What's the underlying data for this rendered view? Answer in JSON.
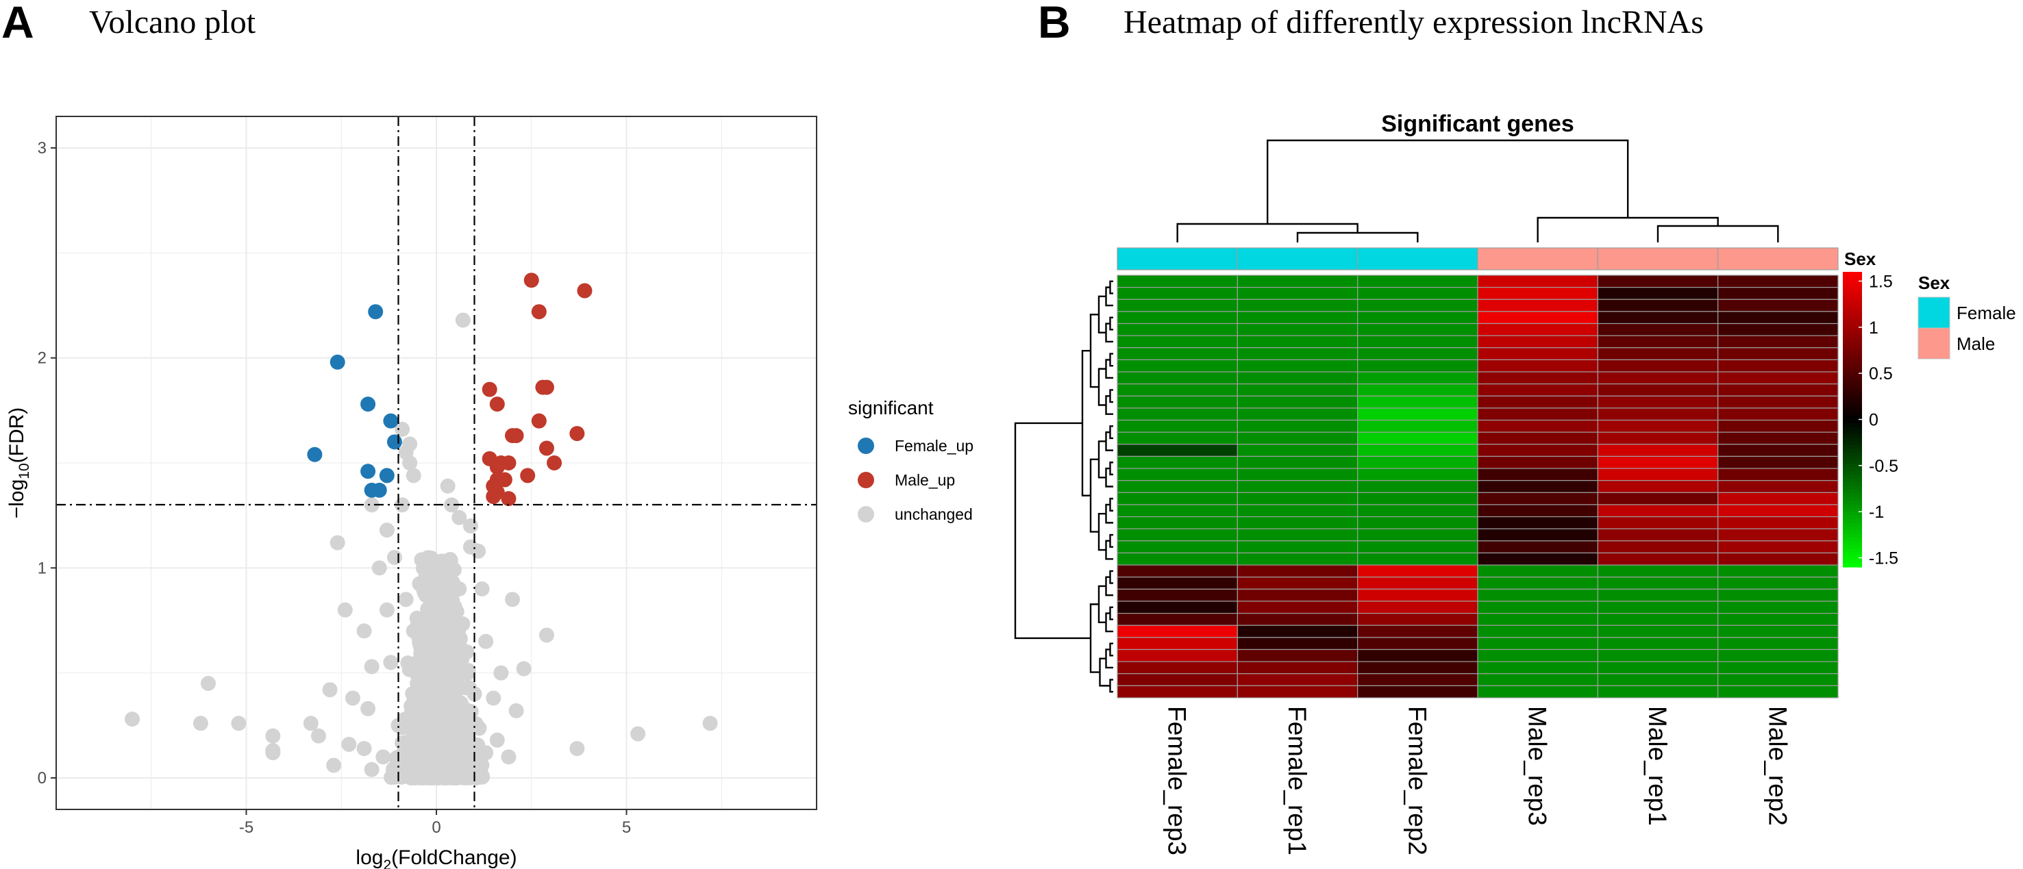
{
  "panels": {
    "a": {
      "letter": "A",
      "title": "Volcano plot"
    },
    "b": {
      "letter": "B",
      "title": "Heatmap of  differently expression lncRNAs"
    }
  },
  "colors": {
    "female_up": "#1f78b4",
    "male_up": "#c0392b",
    "unchanged": "#d3d3d3",
    "female_annot": "#00d7e0",
    "male_annot": "#fc988c"
  },
  "chart_data": [
    {
      "type": "scatter",
      "title": "Volcano plot",
      "xlabel": "log2(FoldChange)",
      "ylabel": "-log10(FDR)",
      "xlim": [
        -10,
        10
      ],
      "ylim": [
        -0.15,
        3.15
      ],
      "xticks": [
        -5,
        0,
        5
      ],
      "yticks": [
        0,
        1,
        2,
        3
      ],
      "thresholds": {
        "x": [
          -1,
          1
        ],
        "y": 1.301
      },
      "legend": {
        "title": "significant",
        "entries": [
          "Female_up",
          "Male_up",
          "unchanged"
        ]
      },
      "series": [
        {
          "name": "Female_up",
          "points": [
            [
              -1.6,
              2.22
            ],
            [
              -2.6,
              1.98
            ],
            [
              -1.8,
              1.78
            ],
            [
              -1.2,
              1.7
            ],
            [
              -3.2,
              1.54
            ],
            [
              -1.1,
              1.6
            ],
            [
              -1.8,
              1.46
            ],
            [
              -1.3,
              1.44
            ],
            [
              -1.7,
              1.37
            ],
            [
              -1.5,
              1.37
            ]
          ]
        },
        {
          "name": "Male_up",
          "points": [
            [
              2.5,
              2.37
            ],
            [
              3.9,
              2.32
            ],
            [
              2.7,
              2.22
            ],
            [
              1.4,
              1.85
            ],
            [
              2.9,
              1.86
            ],
            [
              2.8,
              1.86
            ],
            [
              1.6,
              1.78
            ],
            [
              2.7,
              1.7
            ],
            [
              3.7,
              1.64
            ],
            [
              2.1,
              1.63
            ],
            [
              2.0,
              1.63
            ],
            [
              2.9,
              1.57
            ],
            [
              1.4,
              1.52
            ],
            [
              1.7,
              1.5
            ],
            [
              1.9,
              1.5
            ],
            [
              3.1,
              1.5
            ],
            [
              1.6,
              1.48
            ],
            [
              2.4,
              1.44
            ],
            [
              1.6,
              1.42
            ],
            [
              1.8,
              1.42
            ],
            [
              1.5,
              1.39
            ],
            [
              1.6,
              1.36
            ],
            [
              1.9,
              1.33
            ],
            [
              1.5,
              1.34
            ]
          ]
        },
        {
          "name": "unchanged",
          "points": [
            [
              0.7,
              2.18
            ],
            [
              -0.9,
              1.66
            ],
            [
              -0.7,
              1.59
            ],
            [
              -0.8,
              1.55
            ],
            [
              -0.7,
              1.5
            ],
            [
              -0.6,
              1.44
            ],
            [
              0.3,
              1.39
            ],
            [
              0.4,
              1.3
            ],
            [
              -1.7,
              1.3
            ],
            [
              -0.9,
              1.3
            ],
            [
              0.6,
              1.24
            ],
            [
              -2.6,
              1.12
            ],
            [
              -1.3,
              1.18
            ],
            [
              0.9,
              1.2
            ],
            [
              1.1,
              1.08
            ],
            [
              -1.5,
              1.0
            ],
            [
              -0.2,
              0.95
            ],
            [
              0.3,
              0.92
            ],
            [
              2.0,
              0.85
            ],
            [
              -2.4,
              0.8
            ],
            [
              2.9,
              0.68
            ],
            [
              -1.9,
              0.7
            ],
            [
              1.3,
              0.65
            ],
            [
              2.3,
              0.52
            ],
            [
              -1.7,
              0.53
            ],
            [
              1.7,
              0.5
            ],
            [
              -6.0,
              0.45
            ],
            [
              -2.8,
              0.42
            ],
            [
              -2.2,
              0.38
            ],
            [
              1.5,
              0.38
            ],
            [
              2.1,
              0.32
            ],
            [
              -1.8,
              0.33
            ],
            [
              -8.0,
              0.28
            ],
            [
              -6.2,
              0.26
            ],
            [
              -5.2,
              0.26
            ],
            [
              -3.3,
              0.26
            ],
            [
              -3.1,
              0.2
            ],
            [
              -4.3,
              0.2
            ],
            [
              -4.3,
              0.13
            ],
            [
              -4.3,
              0.12
            ],
            [
              -2.3,
              0.16
            ],
            [
              -2.7,
              0.06
            ],
            [
              -1.9,
              0.14
            ],
            [
              1.6,
              0.18
            ],
            [
              3.7,
              0.14
            ],
            [
              5.3,
              0.21
            ],
            [
              7.2,
              0.26
            ],
            [
              1.9,
              0.1
            ],
            [
              -1.7,
              0.04
            ],
            [
              -1.4,
              0.1
            ],
            [
              0.9,
              0.05
            ],
            [
              1.3,
              0.12
            ],
            [
              -0.4,
              0.3
            ],
            [
              0.5,
              0.5
            ],
            [
              -0.6,
              0.7
            ],
            [
              0.2,
              0.8
            ],
            [
              -0.3,
              1.0
            ],
            [
              0.8,
              0.6
            ],
            [
              0.2,
              0.1
            ],
            [
              0.0,
              0.02
            ],
            [
              -0.2,
              0.04
            ],
            [
              0.3,
              0.08
            ],
            [
              0.6,
              0.9
            ],
            [
              -0.8,
              0.85
            ],
            [
              1.0,
              0.4
            ],
            [
              -1.2,
              0.55
            ],
            [
              -1.0,
              0.25
            ],
            [
              0.7,
              0.15
            ],
            [
              -0.5,
              0.45
            ],
            [
              0.4,
              0.65
            ],
            [
              -0.1,
              0.75
            ],
            [
              1.2,
              0.9
            ],
            [
              -1.3,
              0.8
            ],
            [
              0.9,
              1.1
            ],
            [
              -1.1,
              1.05
            ],
            [
              0.1,
              0.4
            ],
            [
              -0.6,
              0.2
            ]
          ]
        }
      ]
    },
    {
      "type": "heatmap",
      "title": "Significant genes",
      "columns": [
        "Female_rep3",
        "Female_rep1",
        "Female_rep2",
        "Male_rep3",
        "Male_rep1",
        "Male_rep2"
      ],
      "column_groups": [
        "Female",
        "Female",
        "Female",
        "Male",
        "Male",
        "Male"
      ],
      "annotation": {
        "title": "Sex",
        "entries": [
          "Female",
          "Male"
        ]
      },
      "colorbar": {
        "min": -1.6,
        "max": 1.6,
        "ticks": [
          "1.5",
          "1",
          "0.5",
          "0",
          "-0.5",
          "-1",
          "-1.5"
        ],
        "tick_values": [
          1.5,
          1,
          0.5,
          0,
          -0.5,
          -1,
          -1.5
        ]
      },
      "values": [
        [
          -0.9,
          -0.9,
          -0.9,
          1.3,
          0.5,
          0.5
        ],
        [
          -0.9,
          -0.9,
          -0.9,
          1.4,
          0.2,
          0.4
        ],
        [
          -0.9,
          -0.9,
          -0.9,
          1.4,
          0.3,
          0.5
        ],
        [
          -0.9,
          -0.9,
          -0.9,
          1.5,
          0.3,
          0.3
        ],
        [
          -0.9,
          -0.9,
          -0.9,
          1.3,
          0.5,
          0.4
        ],
        [
          -0.9,
          -0.9,
          -0.9,
          1.2,
          0.6,
          0.6
        ],
        [
          -0.9,
          -0.9,
          -0.9,
          1.1,
          0.7,
          0.7
        ],
        [
          -0.9,
          -0.9,
          -0.9,
          1.0,
          0.8,
          0.8
        ],
        [
          -0.9,
          -0.9,
          -1.0,
          0.9,
          0.9,
          0.9
        ],
        [
          -0.9,
          -0.9,
          -1.1,
          0.9,
          0.8,
          0.8
        ],
        [
          -0.9,
          -0.9,
          -1.2,
          0.8,
          0.9,
          0.8
        ],
        [
          -0.9,
          -0.9,
          -1.3,
          0.8,
          0.9,
          0.8
        ],
        [
          -0.9,
          -0.9,
          -1.2,
          0.9,
          1.0,
          0.7
        ],
        [
          -0.9,
          -0.9,
          -1.3,
          0.8,
          1.0,
          0.6
        ],
        [
          -0.4,
          -0.9,
          -1.2,
          0.8,
          1.3,
          0.5
        ],
        [
          -0.9,
          -0.9,
          -1.1,
          0.7,
          1.4,
          0.5
        ],
        [
          -0.9,
          -0.9,
          -1.0,
          0.4,
          1.3,
          0.7
        ],
        [
          -0.9,
          -0.9,
          -0.9,
          0.3,
          1.1,
          0.9
        ],
        [
          -0.9,
          -0.9,
          -0.9,
          0.5,
          0.7,
          1.2
        ],
        [
          -0.9,
          -0.9,
          -0.9,
          0.4,
          1.2,
          1.3
        ],
        [
          -0.9,
          -0.9,
          -0.9,
          0.2,
          1.0,
          1.1
        ],
        [
          -0.9,
          -0.9,
          -0.9,
          0.2,
          0.9,
          1.0
        ],
        [
          -0.9,
          -0.9,
          -0.9,
          0.4,
          0.9,
          1.0
        ],
        [
          -0.9,
          -0.9,
          -0.9,
          0.2,
          0.9,
          0.9
        ],
        [
          0.5,
          0.7,
          1.4,
          -0.9,
          -0.9,
          -0.9
        ],
        [
          0.3,
          0.8,
          1.3,
          -0.9,
          -0.9,
          -0.9
        ],
        [
          0.4,
          0.7,
          1.3,
          -0.9,
          -0.9,
          -0.9
        ],
        [
          0.2,
          0.8,
          1.2,
          -0.9,
          -0.9,
          -0.9
        ],
        [
          0.5,
          0.6,
          0.9,
          -0.9,
          -0.9,
          -0.9
        ],
        [
          1.5,
          0.2,
          0.6,
          -0.9,
          -0.9,
          -0.9
        ],
        [
          1.3,
          0.3,
          0.5,
          -0.9,
          -0.9,
          -0.9
        ],
        [
          1.2,
          0.6,
          0.3,
          -0.9,
          -0.9,
          -0.9
        ],
        [
          0.9,
          0.8,
          0.4,
          -0.9,
          -0.9,
          -0.9
        ],
        [
          0.8,
          0.9,
          0.5,
          -0.9,
          -0.9,
          -0.9
        ],
        [
          0.9,
          0.9,
          0.4,
          -0.9,
          -0.9,
          -0.9
        ]
      ]
    }
  ]
}
